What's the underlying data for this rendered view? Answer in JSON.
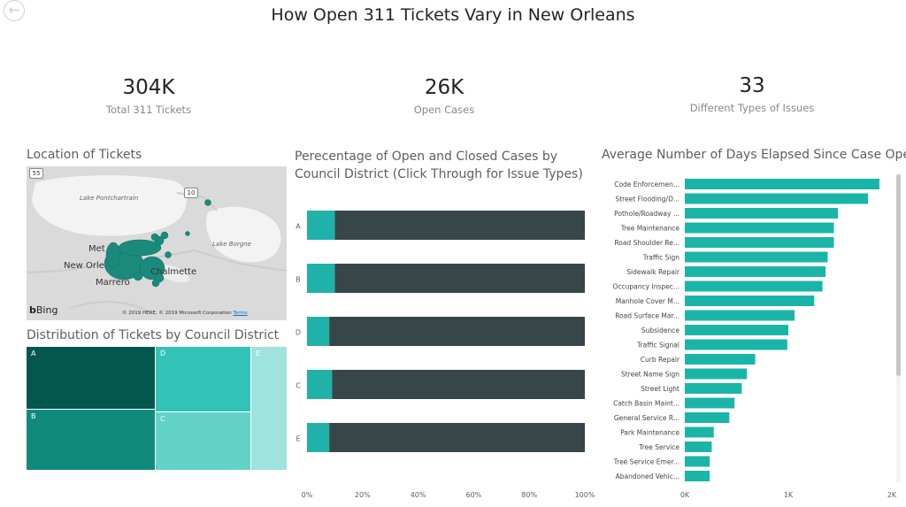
{
  "page": {
    "title": "How Open 311 Tickets Vary in New Orleans"
  },
  "nav": {
    "back_icon": "back-arrow-icon"
  },
  "kpis": [
    {
      "value": "304K",
      "label": "Total 311 Tickets"
    },
    {
      "value": "26K",
      "label": "Open Cases"
    },
    {
      "value": "33",
      "label": "Different Types of Issues"
    }
  ],
  "map": {
    "title": "Location of Tickets",
    "labels": {
      "lake_pontchartrain": "Lake Pontchartrain",
      "lake_borgne": "Lake Borgne",
      "metairie": "Met",
      "new_orleans": "New Orle",
      "chalmette": "Chalmette",
      "marrero": "Marrero",
      "interstate_10": "10",
      "highway_55": "55"
    },
    "attribution": "© 2019 HERE, © 2019 Microsoft Corporation",
    "terms": "Terms",
    "bing": "Bing",
    "point_color": "#1a8a7c"
  },
  "treemap": {
    "title": "Distribution of Tickets by Council District",
    "cells": [
      {
        "label": "A",
        "color": "#04574f"
      },
      {
        "label": "B",
        "color": "#118a7e"
      },
      {
        "label": "D",
        "color": "#33c2b6"
      },
      {
        "label": "C",
        "color": "#63d3c8"
      },
      {
        "label": "E",
        "color": "#9ee3dd"
      }
    ]
  },
  "chart_data": [
    {
      "type": "bar",
      "orientation": "horizontal",
      "stacked": "100%",
      "title": "Perecentage of Open and Closed Cases by Council District (Click Through for Issue Types)",
      "categories": [
        "A",
        "B",
        "D",
        "C",
        "E"
      ],
      "series": [
        {
          "values": [
            10,
            10,
            8,
            9,
            8
          ],
          "color": "#20b2a8"
        },
        {
          "values": [
            90,
            90,
            92,
            91,
            92
          ],
          "color": "#374649"
        }
      ],
      "x_ticks": [
        "0%",
        "20%",
        "40%",
        "60%",
        "80%",
        "100%"
      ],
      "xlim": [
        0,
        100
      ]
    },
    {
      "type": "bar",
      "orientation": "horizontal",
      "title": "Average Number of Days Elapsed Since Case Ope...",
      "categories": [
        "Code Enforcemen...",
        "Street Flooding/D...",
        "Pothole/Roadway ...",
        "Tree Maintenance",
        "Road Shoulder Re...",
        "Traffic Sign",
        "Sidewalk Repair",
        "Occupancy Inspec...",
        "Manhole Cover M...",
        "Road Surface Mar...",
        "Subsidence",
        "Traffic Signal",
        "Curb Repair",
        "Street Name Sign",
        "Street Light",
        "Catch Basin Maint...",
        "General Service R...",
        "Park Maintenance",
        "Tree Service",
        "Tree Service Emer...",
        "Abandoned Vehic..."
      ],
      "values": [
        1880,
        1770,
        1480,
        1440,
        1440,
        1380,
        1360,
        1330,
        1250,
        1060,
        1000,
        990,
        680,
        600,
        550,
        480,
        430,
        280,
        260,
        240,
        240
      ],
      "color": "#1bb5a7",
      "x_ticks": [
        "0K",
        "1K",
        "2K"
      ],
      "xlim": [
        0,
        2000
      ]
    }
  ]
}
